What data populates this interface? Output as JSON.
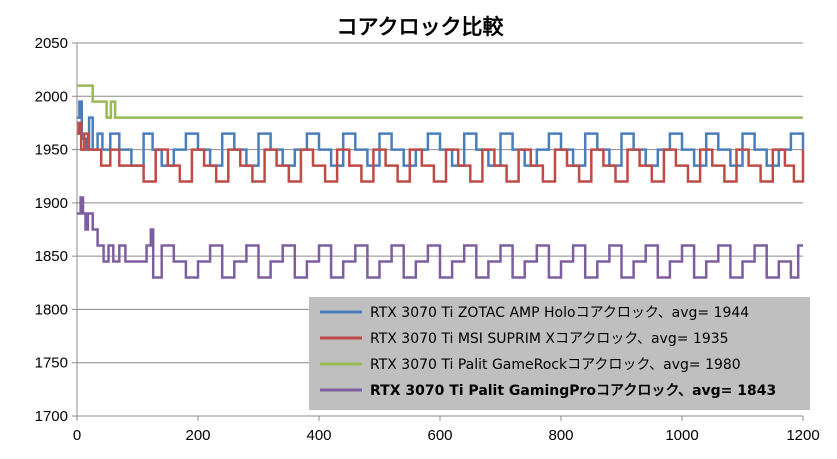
{
  "chart_data": {
    "type": "line",
    "title": "コアクロック比較",
    "xlabel": "",
    "ylabel": "",
    "xlim": [
      0,
      1200
    ],
    "ylim": [
      1700,
      2050
    ],
    "x_ticks": [
      0,
      200,
      400,
      600,
      800,
      1000,
      1200
    ],
    "y_ticks": [
      1700,
      1750,
      1800,
      1850,
      1900,
      1950,
      2000,
      2050
    ],
    "grid": "horizontal",
    "legend_position": "bottom-right",
    "series": [
      {
        "name": "RTX 3070 Ti ZOTAC AMP Holoコアクロック、avg= 1944",
        "color": "#4a7ebb",
        "bold": false,
        "values": [
          [
            0,
            1980
          ],
          [
            4,
            1995
          ],
          [
            8,
            1960
          ],
          [
            15,
            1950
          ],
          [
            20,
            1980
          ],
          [
            26,
            1950
          ],
          [
            34,
            1965
          ],
          [
            42,
            1950
          ],
          [
            55,
            1965
          ],
          [
            70,
            1950
          ],
          [
            90,
            1935
          ],
          [
            110,
            1965
          ],
          [
            125,
            1950
          ],
          [
            140,
            1935
          ],
          [
            160,
            1950
          ],
          [
            180,
            1965
          ],
          [
            200,
            1950
          ],
          [
            220,
            1935
          ],
          [
            240,
            1965
          ],
          [
            260,
            1950
          ],
          [
            280,
            1935
          ],
          [
            300,
            1965
          ],
          [
            320,
            1950
          ],
          [
            340,
            1935
          ],
          [
            360,
            1950
          ],
          [
            380,
            1965
          ],
          [
            400,
            1950
          ],
          [
            420,
            1935
          ],
          [
            440,
            1965
          ],
          [
            460,
            1950
          ],
          [
            480,
            1935
          ],
          [
            500,
            1965
          ],
          [
            520,
            1950
          ],
          [
            540,
            1935
          ],
          [
            560,
            1950
          ],
          [
            580,
            1965
          ],
          [
            600,
            1950
          ],
          [
            620,
            1935
          ],
          [
            640,
            1965
          ],
          [
            660,
            1950
          ],
          [
            680,
            1935
          ],
          [
            700,
            1965
          ],
          [
            720,
            1950
          ],
          [
            740,
            1935
          ],
          [
            760,
            1950
          ],
          [
            780,
            1965
          ],
          [
            800,
            1950
          ],
          [
            820,
            1935
          ],
          [
            840,
            1965
          ],
          [
            860,
            1950
          ],
          [
            880,
            1935
          ],
          [
            900,
            1965
          ],
          [
            920,
            1950
          ],
          [
            940,
            1935
          ],
          [
            960,
            1950
          ],
          [
            980,
            1965
          ],
          [
            1000,
            1950
          ],
          [
            1020,
            1935
          ],
          [
            1040,
            1965
          ],
          [
            1060,
            1950
          ],
          [
            1080,
            1935
          ],
          [
            1100,
            1965
          ],
          [
            1120,
            1950
          ],
          [
            1140,
            1935
          ],
          [
            1160,
            1950
          ],
          [
            1180,
            1965
          ],
          [
            1200,
            1950
          ]
        ]
      },
      {
        "name": "RTX 3070 Ti MSI SUPRIM Xコアクロック、avg= 1935",
        "color": "#be4b48",
        "bold": false,
        "values": [
          [
            0,
            1965
          ],
          [
            3,
            1975
          ],
          [
            7,
            1950
          ],
          [
            12,
            1965
          ],
          [
            18,
            1950
          ],
          [
            30,
            1950
          ],
          [
            40,
            1935
          ],
          [
            55,
            1950
          ],
          [
            70,
            1935
          ],
          [
            90,
            1935
          ],
          [
            110,
            1920
          ],
          [
            130,
            1950
          ],
          [
            150,
            1935
          ],
          [
            170,
            1920
          ],
          [
            190,
            1950
          ],
          [
            210,
            1935
          ],
          [
            230,
            1920
          ],
          [
            250,
            1950
          ],
          [
            270,
            1935
          ],
          [
            290,
            1920
          ],
          [
            310,
            1950
          ],
          [
            330,
            1935
          ],
          [
            350,
            1920
          ],
          [
            370,
            1950
          ],
          [
            390,
            1935
          ],
          [
            410,
            1920
          ],
          [
            430,
            1950
          ],
          [
            450,
            1935
          ],
          [
            470,
            1920
          ],
          [
            490,
            1950
          ],
          [
            510,
            1935
          ],
          [
            530,
            1920
          ],
          [
            550,
            1950
          ],
          [
            570,
            1935
          ],
          [
            590,
            1920
          ],
          [
            610,
            1950
          ],
          [
            630,
            1935
          ],
          [
            650,
            1920
          ],
          [
            670,
            1950
          ],
          [
            690,
            1935
          ],
          [
            710,
            1920
          ],
          [
            730,
            1950
          ],
          [
            750,
            1935
          ],
          [
            770,
            1920
          ],
          [
            790,
            1950
          ],
          [
            810,
            1935
          ],
          [
            830,
            1920
          ],
          [
            850,
            1950
          ],
          [
            870,
            1935
          ],
          [
            890,
            1920
          ],
          [
            910,
            1950
          ],
          [
            930,
            1935
          ],
          [
            950,
            1920
          ],
          [
            970,
            1950
          ],
          [
            990,
            1935
          ],
          [
            1010,
            1920
          ],
          [
            1030,
            1950
          ],
          [
            1050,
            1935
          ],
          [
            1070,
            1920
          ],
          [
            1090,
            1950
          ],
          [
            1110,
            1935
          ],
          [
            1130,
            1920
          ],
          [
            1150,
            1950
          ],
          [
            1170,
            1935
          ],
          [
            1185,
            1920
          ],
          [
            1200,
            1950
          ]
        ]
      },
      {
        "name": "RTX 3070 Ti Palit GameRockコアクロック、avg= 1980",
        "color": "#98b954",
        "bold": false,
        "values": [
          [
            0,
            2010
          ],
          [
            25,
            2010
          ],
          [
            26,
            1995
          ],
          [
            48,
            1995
          ],
          [
            49,
            1980
          ],
          [
            55,
            1980
          ],
          [
            56,
            1995
          ],
          [
            62,
            1995
          ],
          [
            63,
            1980
          ],
          [
            1200,
            1980
          ]
        ]
      },
      {
        "name": "RTX 3070 Ti Palit GamingProコアクロック、avg= 1843",
        "color": "#7d5fa0",
        "bold": true,
        "values": [
          [
            0,
            1890
          ],
          [
            6,
            1905
          ],
          [
            10,
            1890
          ],
          [
            14,
            1875
          ],
          [
            18,
            1890
          ],
          [
            26,
            1875
          ],
          [
            34,
            1860
          ],
          [
            44,
            1845
          ],
          [
            52,
            1860
          ],
          [
            60,
            1845
          ],
          [
            70,
            1860
          ],
          [
            80,
            1845
          ],
          [
            100,
            1845
          ],
          [
            115,
            1860
          ],
          [
            122,
            1875
          ],
          [
            126,
            1830
          ],
          [
            140,
            1860
          ],
          [
            160,
            1845
          ],
          [
            180,
            1830
          ],
          [
            200,
            1845
          ],
          [
            220,
            1860
          ],
          [
            240,
            1830
          ],
          [
            260,
            1845
          ],
          [
            280,
            1860
          ],
          [
            300,
            1830
          ],
          [
            320,
            1845
          ],
          [
            340,
            1860
          ],
          [
            360,
            1830
          ],
          [
            380,
            1845
          ],
          [
            400,
            1860
          ],
          [
            420,
            1830
          ],
          [
            440,
            1845
          ],
          [
            460,
            1860
          ],
          [
            480,
            1830
          ],
          [
            500,
            1845
          ],
          [
            520,
            1860
          ],
          [
            540,
            1830
          ],
          [
            560,
            1845
          ],
          [
            580,
            1860
          ],
          [
            600,
            1830
          ],
          [
            620,
            1845
          ],
          [
            640,
            1860
          ],
          [
            660,
            1830
          ],
          [
            680,
            1845
          ],
          [
            700,
            1860
          ],
          [
            720,
            1830
          ],
          [
            740,
            1845
          ],
          [
            760,
            1860
          ],
          [
            780,
            1830
          ],
          [
            800,
            1845
          ],
          [
            820,
            1860
          ],
          [
            840,
            1830
          ],
          [
            860,
            1845
          ],
          [
            880,
            1860
          ],
          [
            900,
            1830
          ],
          [
            920,
            1845
          ],
          [
            940,
            1860
          ],
          [
            960,
            1830
          ],
          [
            980,
            1845
          ],
          [
            1000,
            1860
          ],
          [
            1020,
            1830
          ],
          [
            1040,
            1845
          ],
          [
            1060,
            1860
          ],
          [
            1080,
            1830
          ],
          [
            1100,
            1845
          ],
          [
            1120,
            1860
          ],
          [
            1140,
            1830
          ],
          [
            1160,
            1845
          ],
          [
            1180,
            1830
          ],
          [
            1192,
            1860
          ],
          [
            1200,
            1860
          ]
        ]
      }
    ]
  }
}
